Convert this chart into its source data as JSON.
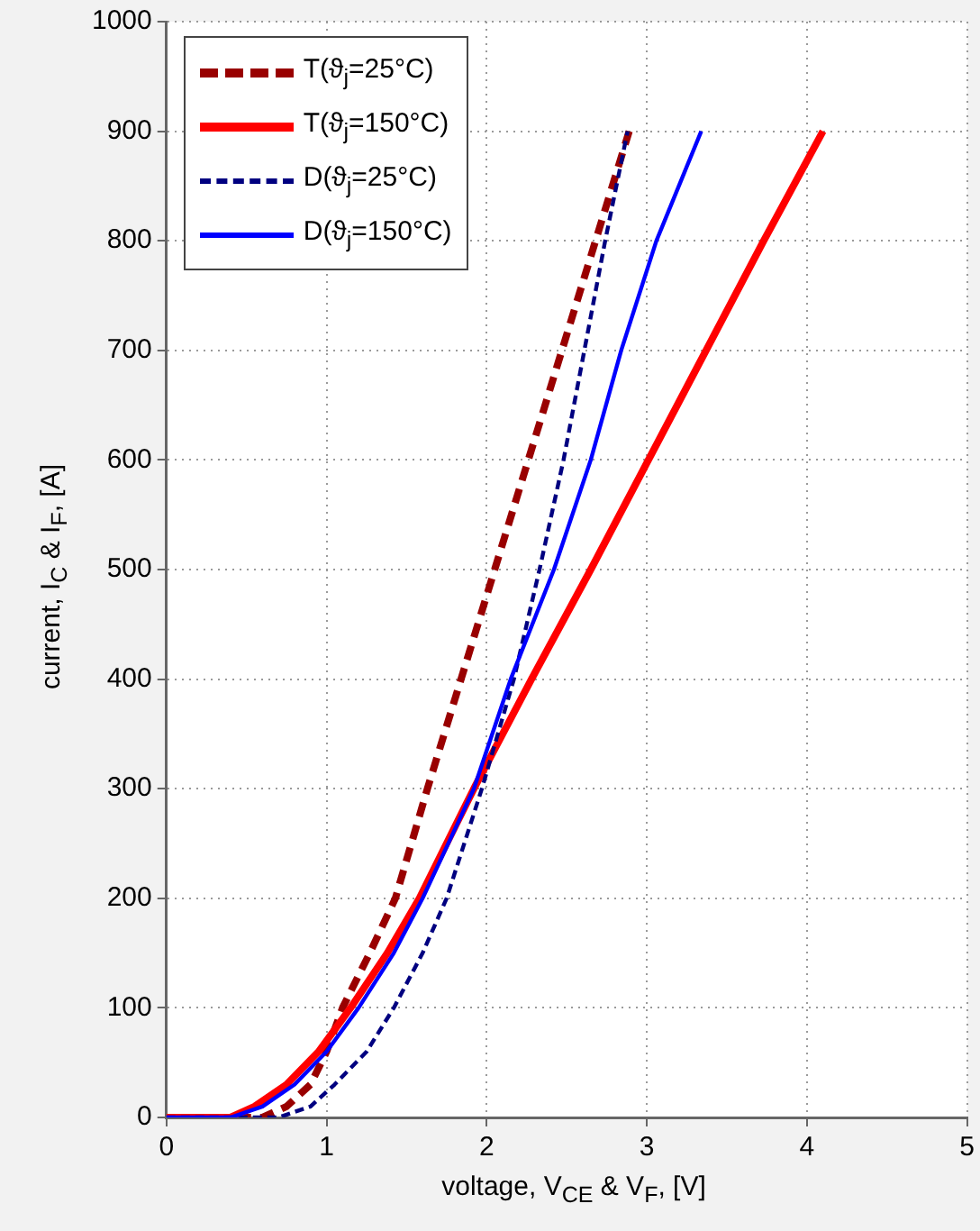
{
  "chart_data": {
    "type": "line",
    "xlabel": "voltage, V$_{CE}$ &  V$_{F}$, [V]",
    "ylabel": "current, I$_{C}$ &  I$_{F}$, [A]",
    "xlim": [
      0,
      5
    ],
    "xticks": [
      0,
      1,
      2,
      3,
      4,
      5
    ],
    "ylim": [
      0,
      1000
    ],
    "yticks": [
      0,
      100,
      200,
      300,
      400,
      500,
      600,
      700,
      800,
      900,
      1000
    ],
    "grid": true,
    "legend": "top left",
    "marker": "none",
    "series": [
      {
        "name": "T(ϑ$_{j}$=25°C)",
        "color": "#990000",
        "line_style": "dashed",
        "x": [
          0,
          0.6,
          0.75,
          0.9,
          1.0,
          1.1,
          1.27,
          1.43,
          1.63,
          1.84,
          2.05,
          2.26,
          2.47,
          2.68,
          2.89
        ],
        "values": [
          0,
          0,
          10,
          30,
          60,
          100,
          150,
          200,
          300,
          400,
          500,
          600,
          700,
          800,
          900
        ]
      },
      {
        "name": "T(ϑ$_{j}$=150°C)",
        "color": "#ff0000",
        "line_style": "solid",
        "x": [
          0,
          0.4,
          0.55,
          0.75,
          0.95,
          1.15,
          1.38,
          1.58,
          1.92,
          2.28,
          2.65,
          3.01,
          3.37,
          3.73,
          4.1
        ],
        "values": [
          0,
          0,
          10,
          30,
          60,
          100,
          150,
          200,
          300,
          400,
          500,
          600,
          700,
          800,
          900
        ]
      },
      {
        "name": "D(ϑ$_{j}$=25°C)",
        "color": "#000080",
        "line_style": "dashed",
        "x": [
          0,
          0.7,
          0.9,
          1.05,
          1.25,
          1.42,
          1.6,
          1.75,
          1.97,
          2.17,
          2.33,
          2.48,
          2.61,
          2.74,
          2.88
        ],
        "values": [
          0,
          0,
          10,
          30,
          60,
          100,
          150,
          200,
          300,
          400,
          500,
          600,
          700,
          800,
          900
        ]
      },
      {
        "name": "D(ϑ$_{j}$=150°C)",
        "color": "#0000ff",
        "line_style": "solid",
        "x": [
          0,
          0.4,
          0.6,
          0.8,
          1.0,
          1.2,
          1.42,
          1.6,
          1.92,
          2.15,
          2.42,
          2.65,
          2.84,
          3.06,
          3.34
        ],
        "values": [
          0,
          0,
          10,
          30,
          60,
          100,
          150,
          200,
          300,
          400,
          500,
          600,
          700,
          800,
          900
        ]
      }
    ]
  }
}
